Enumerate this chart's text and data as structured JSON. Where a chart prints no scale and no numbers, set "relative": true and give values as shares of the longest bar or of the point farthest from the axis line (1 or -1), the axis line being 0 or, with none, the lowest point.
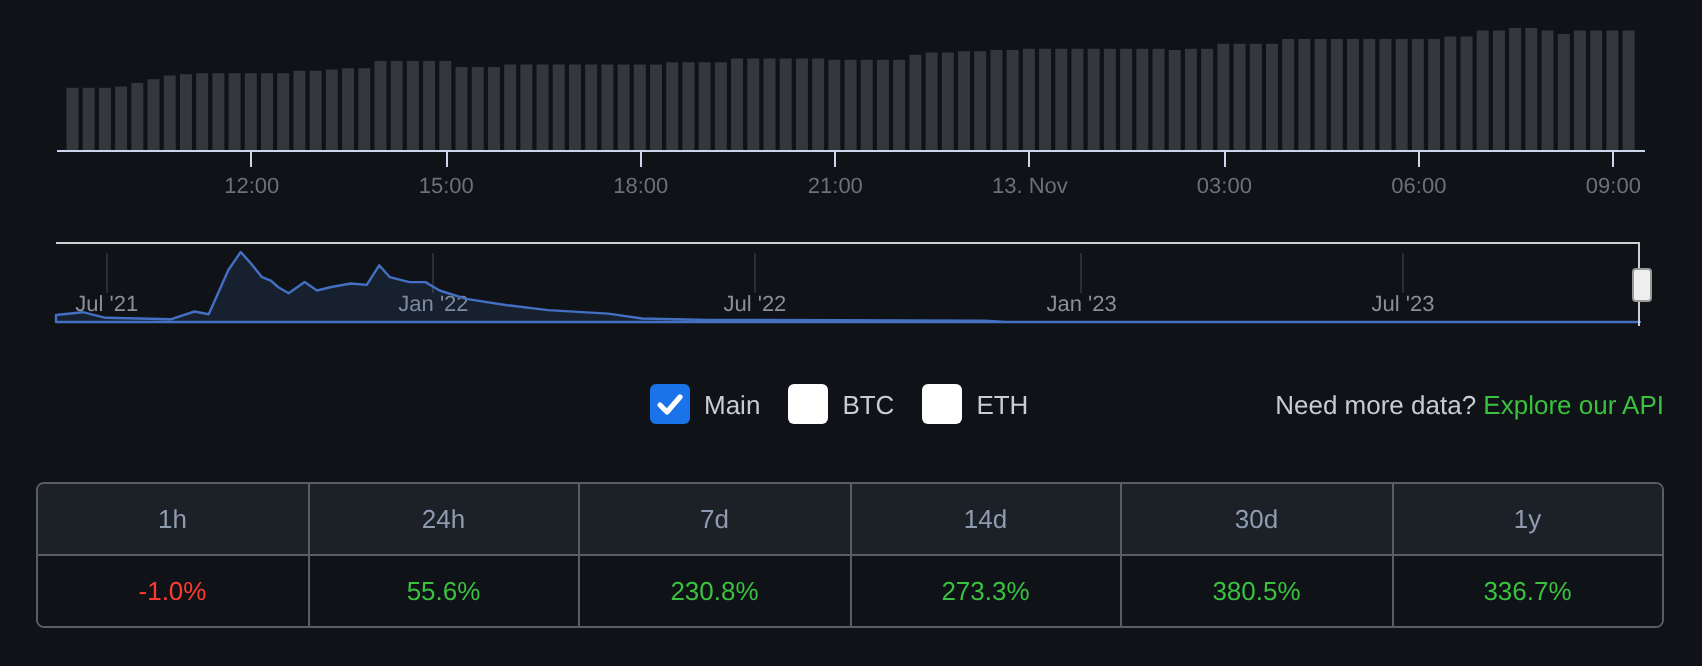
{
  "chart_data": [
    {
      "type": "bar",
      "relative": true,
      "color": "#34373c",
      "x": [
        "--11-12T09:15",
        "--11-12T09:30",
        "--11-12T09:45",
        "--11-12T10:00",
        "--11-12T10:15",
        "--11-12T10:30",
        "--11-12T10:45",
        "--11-12T11:00",
        "--11-12T11:15",
        "--11-12T11:30",
        "--11-12T11:45",
        "--11-12T12:00",
        "--11-12T12:15",
        "--11-12T12:30",
        "--11-12T12:45",
        "--11-12T13:00",
        "--11-12T13:15",
        "--11-12T13:30",
        "--11-12T13:45",
        "--11-12T14:00",
        "--11-12T14:15",
        "--11-12T14:30",
        "--11-12T14:45",
        "--11-12T15:00",
        "--11-12T15:15",
        "--11-12T15:30",
        "--11-12T15:45",
        "--11-12T16:00",
        "--11-12T16:15",
        "--11-12T16:30",
        "--11-12T16:45",
        "--11-12T17:00",
        "--11-12T17:15",
        "--11-12T17:30",
        "--11-12T17:45",
        "--11-12T18:00",
        "--11-12T18:15",
        "--11-12T18:30",
        "--11-12T18:45",
        "--11-12T19:00",
        "--11-12T19:15",
        "--11-12T19:30",
        "--11-12T19:45",
        "--11-12T20:00",
        "--11-12T20:15",
        "--11-12T20:30",
        "--11-12T20:45",
        "--11-12T21:00",
        "--11-12T21:15",
        "--11-12T21:30",
        "--11-12T21:45",
        "--11-12T22:00",
        "--11-12T22:15",
        "--11-12T22:30",
        "--11-12T22:45",
        "--11-12T23:00",
        "--11-12T23:15",
        "--11-12T23:30",
        "--11-12T23:45",
        "--11-13T00:00",
        "--11-13T00:15",
        "--11-13T00:30",
        "--11-13T00:45",
        "--11-13T01:00",
        "--11-13T01:15",
        "--11-13T01:30",
        "--11-13T01:45",
        "--11-13T02:00",
        "--11-13T02:15",
        "--11-13T02:30",
        "--11-13T02:45",
        "--11-13T03:00",
        "--11-13T03:15",
        "--11-13T03:30",
        "--11-13T03:45",
        "--11-13T04:00",
        "--11-13T04:15",
        "--11-13T04:30",
        "--11-13T04:45",
        "--11-13T05:00",
        "--11-13T05:15",
        "--11-13T05:30",
        "--11-13T05:45",
        "--11-13T06:00",
        "--11-13T06:15",
        "--11-13T06:30",
        "--11-13T06:45",
        "--11-13T07:00",
        "--11-13T07:15",
        "--11-13T07:30",
        "--11-13T07:45",
        "--11-13T08:00",
        "--11-13T08:15",
        "--11-13T08:30",
        "--11-13T08:45",
        "--11-13T09:00",
        "--11-13T09:15"
      ],
      "values": [
        0.51,
        0.51,
        0.51,
        0.52,
        0.55,
        0.58,
        0.61,
        0.62,
        0.63,
        0.63,
        0.63,
        0.63,
        0.63,
        0.63,
        0.65,
        0.65,
        0.66,
        0.67,
        0.67,
        0.73,
        0.73,
        0.73,
        0.73,
        0.73,
        0.68,
        0.68,
        0.68,
        0.7,
        0.7,
        0.7,
        0.7,
        0.7,
        0.7,
        0.7,
        0.7,
        0.7,
        0.7,
        0.72,
        0.72,
        0.72,
        0.72,
        0.75,
        0.75,
        0.75,
        0.75,
        0.75,
        0.75,
        0.74,
        0.74,
        0.74,
        0.74,
        0.74,
        0.78,
        0.8,
        0.8,
        0.81,
        0.81,
        0.82,
        0.82,
        0.83,
        0.83,
        0.83,
        0.83,
        0.83,
        0.83,
        0.83,
        0.83,
        0.83,
        0.82,
        0.83,
        0.83,
        0.87,
        0.87,
        0.87,
        0.87,
        0.91,
        0.91,
        0.91,
        0.91,
        0.91,
        0.91,
        0.91,
        0.91,
        0.91,
        0.91,
        0.93,
        0.93,
        0.98,
        0.98,
        1,
        1,
        0.98,
        0.95,
        0.98,
        0.98,
        0.98,
        0.98
      ],
      "xlim": [
        "--11-12T09:09",
        "--11-13T09:20"
      ],
      "xticks": [
        {
          "value": "--11-12T12:00",
          "label": "12:00"
        },
        {
          "value": "--11-12T15:00",
          "label": "15:00"
        },
        {
          "value": "--11-12T18:00",
          "label": "18:00"
        },
        {
          "value": "--11-12T21:00",
          "label": "21:00"
        },
        {
          "value": "--11-13T00:00",
          "label": "13. Nov"
        },
        {
          "value": "--11-13T03:00",
          "label": "03:00"
        },
        {
          "value": "--11-13T06:00",
          "label": "06:00"
        },
        {
          "value": "--11-13T09:00",
          "label": "09:00"
        }
      ]
    },
    {
      "type": "area",
      "relative": true,
      "color": "#4470c4",
      "grid": "x",
      "x": [
        "2021-06-03",
        "2021-06-18",
        "2021-07-01",
        "2021-08-07",
        "2021-08-20",
        "2021-08-28",
        "2021-09-08",
        "2021-09-15",
        "2021-09-21",
        "2021-09-27",
        "2021-10-02",
        "2021-10-06",
        "2021-10-12",
        "2021-10-21",
        "2021-10-28",
        "2021-11-05",
        "2021-11-16",
        "2021-11-25",
        "2021-12-02",
        "2021-12-08",
        "2021-12-19",
        "2021-12-28",
        "2022-01-05",
        "2022-01-20",
        "2022-02-12",
        "2022-03-07",
        "2022-04-10",
        "2022-04-29",
        "2022-06-05",
        "2022-11-08",
        "2022-11-20",
        "2023-11-12"
      ],
      "values": [
        0.1,
        0.14,
        0.06,
        0.04,
        0.15,
        0.11,
        0.74,
        1,
        0.83,
        0.64,
        0.59,
        0.5,
        0.41,
        0.57,
        0.45,
        0.5,
        0.55,
        0.53,
        0.81,
        0.64,
        0.57,
        0.57,
        0.45,
        0.33,
        0.24,
        0.17,
        0.12,
        0.05,
        0.03,
        0.02,
        0,
        0
      ],
      "xlim": [
        "2021-06-03",
        "2023-11-12"
      ],
      "xticks": [
        {
          "value": "2021-07-01",
          "label": "Jul '21"
        },
        {
          "value": "2022-01-01",
          "label": "Jan '22"
        },
        {
          "value": "2022-07-01",
          "label": "Jul '22"
        },
        {
          "value": "2023-01-01",
          "label": "Jan '23"
        },
        {
          "value": "2023-07-01",
          "label": "Jul '23"
        }
      ]
    },
    {
      "type": "other",
      "categories": [
        "1h",
        "24h",
        "7d",
        "14d",
        "30d",
        "1y"
      ],
      "values": [
        -1.0,
        55.6,
        230.8,
        273.3,
        380.5,
        336.7
      ],
      "value_labels": [
        "-1.0%",
        "55.6%",
        "230.8%",
        "273.3%",
        "380.5%",
        "336.7%"
      ],
      "annotations": [
        "Main",
        "BTC",
        "ETH",
        "Need more data?",
        "Explore our API"
      ]
    }
  ]
}
